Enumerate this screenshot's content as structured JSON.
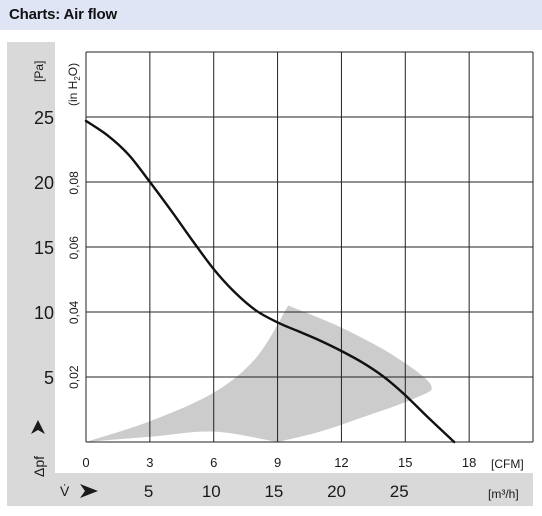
{
  "header": {
    "title": "Charts: Air flow"
  },
  "chart_data": {
    "type": "line",
    "title": "Charts: Air flow",
    "y_axis_pa": {
      "unit": "[Pa]",
      "range": [
        0,
        30
      ],
      "ticks": [
        5,
        10,
        15,
        20,
        25
      ]
    },
    "y_axis_inh2o": {
      "unit": "(in H2O)",
      "ticks": [
        "0,02",
        "0,04",
        "0,06",
        "0,08"
      ],
      "tick_values": [
        0.02,
        0.04,
        0.06,
        0.08
      ]
    },
    "y_label": "Δpf",
    "x_axis_cfm": {
      "unit": "[CFM]",
      "range": [
        0,
        21
      ],
      "ticks": [
        0,
        3,
        6,
        9,
        12,
        15,
        18
      ]
    },
    "x_axis_m3h": {
      "unit": "[m³/h]",
      "ticks": [
        5,
        10,
        15,
        20,
        25
      ]
    },
    "x_label": "V̇",
    "grid": true,
    "series": [
      {
        "x": [
          0,
          1,
          2,
          3,
          4,
          5,
          6,
          7,
          8,
          9,
          10,
          11,
          12,
          13,
          14,
          15,
          16,
          17.3
        ],
        "y": [
          24.7,
          23.6,
          22.1,
          20.0,
          17.8,
          15.5,
          13.3,
          11.5,
          10.1,
          9.2,
          8.5,
          7.8,
          7.0,
          6.1,
          5.0,
          3.6,
          2.0,
          0
        ]
      }
    ],
    "operating_range_region": {
      "upper": {
        "x": [
          0,
          3,
          6,
          8,
          9.5
        ],
        "y": [
          0,
          1.6,
          3.8,
          6.5,
          10.5
        ]
      },
      "lower": {
        "x": [
          0,
          3,
          6,
          9
        ],
        "y": [
          0,
          0.4,
          0.8,
          0
        ]
      },
      "outer": {
        "x": [
          9.5,
          12,
          14.5,
          16.2,
          15.5,
          13,
          11,
          9
        ],
        "y": [
          10.5,
          8.8,
          6.6,
          4.4,
          3.4,
          1.9,
          0.8,
          0
        ]
      }
    }
  },
  "colors": {
    "curve": "#111111",
    "region": "#cccccc",
    "grid": "#222222",
    "panel": "#d9d9d9",
    "header": "#dfe5f5"
  }
}
